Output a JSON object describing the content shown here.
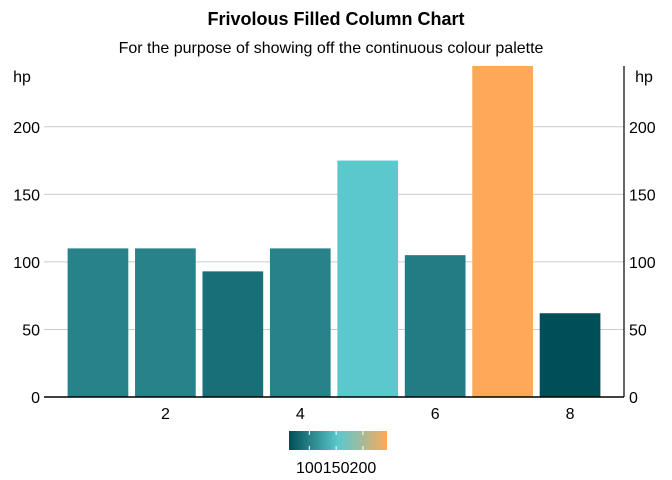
{
  "chart_data": {
    "type": "bar",
    "title": "Frivolous Filled Column Chart",
    "subtitle": "For the purpose of showing off the continuous colour palette",
    "y_unit_label": "hp",
    "x": [
      1,
      2,
      3,
      4,
      5,
      6,
      7,
      8
    ],
    "values": [
      110,
      110,
      93,
      110,
      175,
      105,
      245,
      62
    ],
    "xlim": [
      0.2,
      8.8
    ],
    "ylim": [
      0,
      245
    ],
    "x_ticks": [
      2,
      4,
      6,
      8
    ],
    "y_ticks": [
      0,
      50,
      100,
      150,
      200
    ],
    "grid": "horizontal",
    "y_axis_both_sides": true,
    "colors": {
      "low": "#004e57",
      "mid": "#5bc8cd",
      "high": "#fea95a",
      "grid": "#cccccc",
      "axis": "#000000"
    },
    "legend": {
      "placement": "bottom",
      "type": "colorbar",
      "range": [
        62,
        245
      ],
      "ticks": [
        100,
        150,
        200
      ]
    }
  }
}
